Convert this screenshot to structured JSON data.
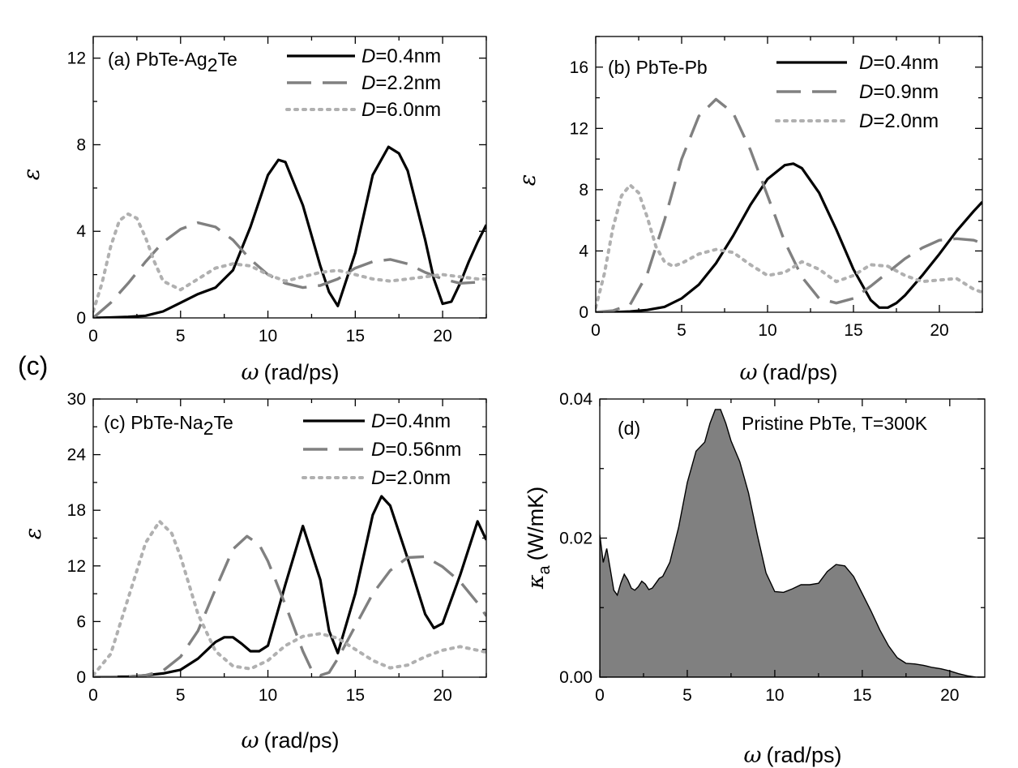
{
  "figure_label": "(c)",
  "chart_data": [
    {
      "type": "line",
      "panel_label": "(a) PbTe-Ag",
      "panel_label_sub": "2",
      "panel_label_tail": "Te",
      "xlabel_symbol": "ω",
      "xlabel": "(rad/ps)",
      "ylabel": "ε",
      "xlim": [
        0,
        22.5
      ],
      "ylim": [
        0,
        13
      ],
      "xticks": [
        0,
        5,
        10,
        15,
        20
      ],
      "yticks": [
        0,
        4,
        8,
        12
      ],
      "series": [
        {
          "name": "=0.4nm",
          "legend_var": "D",
          "style": "solid",
          "color": "#000000",
          "x": [
            0,
            1,
            2,
            3,
            4,
            5,
            6,
            7,
            8,
            9,
            10,
            10.6,
            11,
            12,
            13,
            13.5,
            14,
            15,
            16,
            16.9,
            17.5,
            18,
            19,
            19.5,
            20,
            20.5,
            21,
            21.5,
            22,
            22.5
          ],
          "y": [
            0,
            0.02,
            0.05,
            0.1,
            0.3,
            0.7,
            1.1,
            1.4,
            2.2,
            4.2,
            6.6,
            7.3,
            7.2,
            5.2,
            2.4,
            1.2,
            0.55,
            3.0,
            6.6,
            7.9,
            7.6,
            6.8,
            3.6,
            1.8,
            0.65,
            0.75,
            1.6,
            2.6,
            3.5,
            4.3
          ]
        },
        {
          "name": "=2.2nm",
          "legend_var": "D",
          "style": "dashed",
          "color": "#808080",
          "x": [
            0,
            1,
            2,
            3,
            4,
            5,
            6,
            7,
            8,
            9,
            10,
            11,
            12,
            13,
            14,
            15,
            16,
            17,
            18,
            19,
            20,
            21,
            22,
            22.5
          ],
          "y": [
            0,
            0.7,
            1.6,
            2.6,
            3.5,
            4.1,
            4.4,
            4.2,
            3.6,
            2.7,
            2.0,
            1.6,
            1.4,
            1.5,
            1.8,
            2.3,
            2.6,
            2.7,
            2.5,
            2.1,
            1.8,
            1.6,
            1.65,
            1.7
          ]
        },
        {
          "name": "=6.0nm",
          "legend_var": "D",
          "style": "dotted",
          "color": "#b0b0b0",
          "x": [
            0,
            0.5,
            1,
            1.5,
            2,
            2.5,
            3,
            3.5,
            4,
            5,
            6,
            7,
            8,
            9,
            10,
            11,
            12,
            13,
            14,
            15,
            16,
            17,
            18,
            19,
            20,
            21,
            22,
            22.5
          ],
          "y": [
            0.3,
            1.6,
            3.3,
            4.5,
            4.8,
            4.6,
            3.7,
            2.6,
            1.7,
            1.3,
            1.8,
            2.3,
            2.5,
            2.4,
            2.0,
            1.7,
            1.9,
            2.1,
            2.2,
            2.0,
            1.8,
            1.7,
            1.8,
            1.9,
            2.0,
            1.9,
            1.8,
            1.8
          ]
        }
      ]
    },
    {
      "type": "line",
      "panel_label": "(b) PbTe-Pb",
      "xlabel_symbol": "ω",
      "xlabel": "(rad/ps)",
      "ylabel": "ε",
      "xlim": [
        0,
        22.5
      ],
      "ylim": [
        0,
        18
      ],
      "xticks": [
        0,
        5,
        10,
        15,
        20
      ],
      "yticks": [
        0,
        4,
        8,
        12,
        16
      ],
      "series": [
        {
          "name": "=0.4nm",
          "legend_var": "D",
          "style": "solid",
          "color": "#000000",
          "x": [
            0,
            1,
            2,
            3,
            4,
            5,
            6,
            7,
            8,
            9,
            10,
            11,
            11.5,
            12,
            13,
            14,
            15,
            16,
            16.5,
            17,
            17.5,
            18,
            19,
            20,
            21,
            22,
            22.5
          ],
          "y": [
            0,
            0,
            0.05,
            0.15,
            0.35,
            0.9,
            1.8,
            3.2,
            5.0,
            7.0,
            8.7,
            9.6,
            9.7,
            9.4,
            7.8,
            5.4,
            2.8,
            0.8,
            0.3,
            0.3,
            0.6,
            1.1,
            2.4,
            3.8,
            5.3,
            6.6,
            7.2
          ]
        },
        {
          "name": "=0.9nm",
          "legend_var": "D",
          "style": "dashed",
          "color": "#808080",
          "x": [
            0,
            1,
            2,
            3,
            4,
            5,
            6,
            7,
            8,
            9,
            10,
            11,
            12,
            13,
            14,
            15,
            16,
            17,
            18,
            19,
            20,
            21,
            22,
            22.5
          ],
          "y": [
            0,
            0.1,
            0.5,
            2.5,
            6.0,
            10.0,
            12.8,
            13.9,
            13.0,
            10.6,
            7.6,
            4.6,
            2.3,
            0.9,
            0.6,
            0.9,
            1.7,
            2.6,
            3.5,
            4.2,
            4.7,
            4.8,
            4.7,
            4.5
          ]
        },
        {
          "name": "=2.0nm",
          "legend_var": "D",
          "style": "dotted",
          "color": "#b0b0b0",
          "x": [
            0,
            0.5,
            1,
            1.5,
            2,
            2.5,
            3,
            3.5,
            4,
            4.5,
            5,
            6,
            7,
            8,
            9,
            10,
            11,
            12,
            13,
            14,
            15,
            16,
            17,
            18,
            19,
            20,
            21,
            22,
            22.5
          ],
          "y": [
            0.3,
            2.5,
            5.5,
            7.6,
            8.3,
            7.8,
            6.2,
            4.3,
            3.3,
            3.0,
            3.2,
            3.8,
            4.1,
            3.9,
            3.1,
            2.4,
            2.6,
            3.3,
            2.8,
            2.0,
            2.4,
            3.1,
            3.0,
            2.4,
            2.0,
            2.1,
            2.2,
            1.5,
            1.3
          ]
        }
      ]
    },
    {
      "type": "line",
      "panel_label": "(c) PbTe-Na",
      "panel_label_sub": "2",
      "panel_label_tail": "Te",
      "xlabel_symbol": "ω",
      "xlabel": "(rad/ps)",
      "ylabel": "ε",
      "xlim": [
        0,
        22.5
      ],
      "ylim": [
        0,
        30
      ],
      "xticks": [
        0,
        5,
        10,
        15,
        20
      ],
      "yticks": [
        0,
        6,
        12,
        18,
        24,
        30
      ],
      "series": [
        {
          "name": "=0.4nm",
          "legend_var": "D",
          "style": "solid",
          "color": "#000000",
          "x": [
            0,
            2,
            3,
            4,
            5,
            6,
            7,
            7.5,
            8,
            8.5,
            9,
            9.5,
            10,
            11,
            12,
            13,
            13.5,
            14,
            15,
            16,
            16.5,
            17,
            18,
            19,
            19.5,
            20,
            21,
            22,
            22.5
          ],
          "y": [
            0,
            0.05,
            0.2,
            0.4,
            0.8,
            2.0,
            3.8,
            4.3,
            4.3,
            3.6,
            2.8,
            2.8,
            3.4,
            10.0,
            16.3,
            10.5,
            5.0,
            2.6,
            9.0,
            17.5,
            19.5,
            18.5,
            12.8,
            6.8,
            5.3,
            5.8,
            11.0,
            16.8,
            14.8
          ]
        },
        {
          "name": "=0.56nm",
          "legend_var": "D",
          "style": "dashed",
          "color": "#808080",
          "x": [
            0,
            2,
            3,
            4,
            5,
            6,
            7,
            8,
            8.8,
            9.5,
            10,
            11,
            12,
            12.5,
            13,
            13.5,
            14,
            15,
            16,
            17,
            18,
            19,
            20,
            21,
            22,
            22.5
          ],
          "y": [
            0,
            0.05,
            0.2,
            0.7,
            2.2,
            5.0,
            9.5,
            13.8,
            15.2,
            14.3,
            12.5,
            7.8,
            2.8,
            0.8,
            0.2,
            0.5,
            2.0,
            5.5,
            9.0,
            11.5,
            12.9,
            13.0,
            11.9,
            10.3,
            8.0,
            6.6
          ]
        },
        {
          "name": "=2.0nm",
          "legend_var": "D",
          "style": "dotted",
          "color": "#b0b0b0",
          "x": [
            0,
            1,
            2,
            3,
            3.8,
            4.5,
            5,
            6,
            7,
            8,
            9,
            10,
            11,
            12,
            13,
            14,
            15,
            16,
            17,
            18,
            19,
            20,
            21,
            22,
            22.5
          ],
          "y": [
            0.2,
            2.5,
            8.5,
            14.5,
            16.8,
            15.5,
            13.0,
            6.8,
            2.8,
            1.2,
            0.9,
            1.8,
            3.4,
            4.4,
            4.7,
            4.2,
            3.0,
            1.8,
            1.0,
            1.3,
            2.2,
            2.9,
            3.3,
            2.9,
            2.7
          ]
        }
      ]
    },
    {
      "type": "area",
      "panel_label": "(d)",
      "annotation": "Pristine PbTe, T=300K",
      "xlabel_symbol": "ω",
      "xlabel": "(rad/ps)",
      "ylabel_symbol": "κ",
      "ylabel_sub": "a",
      "ylabel": "(W/mK)",
      "xlim": [
        0,
        22
      ],
      "ylim": [
        0,
        0.04
      ],
      "xticks": [
        0,
        5,
        10,
        15,
        20
      ],
      "yticks": [
        0,
        0.02,
        0.04
      ],
      "ytick_labels": [
        "0.00",
        "0.02",
        "0.04"
      ],
      "fill_color": "#808080",
      "series": [
        {
          "style": "filled",
          "x": [
            0,
            0.2,
            0.4,
            0.6,
            0.8,
            1.0,
            1.2,
            1.4,
            1.6,
            1.8,
            2.0,
            2.2,
            2.4,
            2.6,
            2.8,
            3.0,
            3.2,
            3.4,
            3.6,
            4.0,
            4.5,
            5.0,
            5.5,
            6.0,
            6.3,
            6.6,
            6.9,
            7.2,
            7.5,
            8.0,
            8.5,
            9.0,
            9.5,
            10.0,
            10.5,
            11.0,
            11.5,
            12.0,
            12.5,
            13.0,
            13.5,
            14.0,
            14.5,
            15.0,
            15.5,
            16.0,
            16.5,
            17.0,
            17.5,
            18.0,
            18.5,
            19.0,
            19.5,
            20.0,
            20.5,
            21.0,
            21.5,
            22.0
          ],
          "y": [
            0.0205,
            0.0165,
            0.0185,
            0.0155,
            0.0125,
            0.0118,
            0.0135,
            0.0148,
            0.014,
            0.0128,
            0.0125,
            0.013,
            0.0138,
            0.0134,
            0.0126,
            0.0128,
            0.0135,
            0.0142,
            0.0145,
            0.0165,
            0.0215,
            0.028,
            0.0325,
            0.0338,
            0.0365,
            0.0385,
            0.0385,
            0.0365,
            0.034,
            0.031,
            0.0265,
            0.0205,
            0.015,
            0.0123,
            0.0122,
            0.0127,
            0.0133,
            0.0133,
            0.0135,
            0.0152,
            0.0162,
            0.016,
            0.0145,
            0.012,
            0.0095,
            0.0068,
            0.0045,
            0.0028,
            0.002,
            0.0019,
            0.0017,
            0.0014,
            0.0012,
            0.0009,
            0.0005,
            0.0002,
            0.0,
            0.0
          ]
        }
      ]
    }
  ]
}
